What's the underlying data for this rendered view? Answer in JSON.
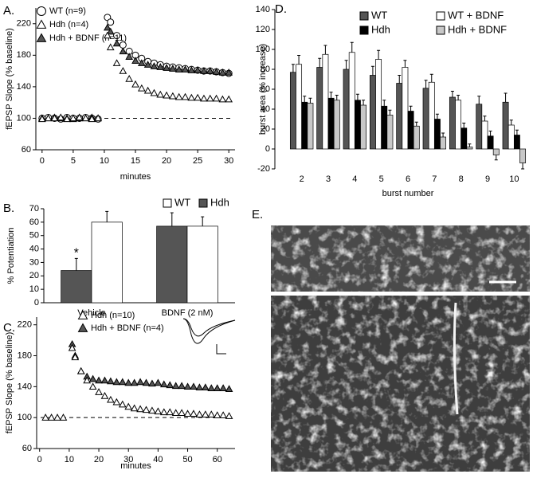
{
  "chart_data": [
    {
      "type": "scatter",
      "panel": "A.",
      "xlabel": "minutes",
      "ylabel": "fEPSP Slope (% baseline)",
      "x": [
        0,
        1,
        2,
        3,
        4,
        5,
        6,
        7,
        8,
        9,
        10.5,
        11,
        12,
        13,
        14,
        15,
        16,
        17,
        18,
        19,
        20,
        21,
        22,
        23,
        24,
        25,
        26,
        27,
        28,
        29,
        30
      ],
      "series": [
        {
          "name": "WT (n=9)",
          "marker": "circle-open",
          "color": "#ffffff",
          "values": [
            100,
            101,
            100,
            99,
            101,
            100,
            100,
            101,
            100,
            99,
            228,
            222,
            205,
            193,
            185,
            180,
            176,
            172,
            170,
            168,
            166,
            165,
            164,
            163,
            162,
            161,
            160,
            160,
            159,
            158,
            157
          ]
        },
        {
          "name": "Hdh + BDNF (n=11)",
          "marker": "triangle-filled",
          "color": "#555555",
          "values": [
            100,
            100,
            101,
            100,
            100,
            99,
            100,
            100,
            101,
            100,
            215,
            210,
            195,
            185,
            178,
            173,
            170,
            168,
            166,
            165,
            164,
            163,
            162,
            162,
            161,
            161,
            160,
            160,
            159,
            158,
            158
          ]
        },
        {
          "name": "Hdh (n=4)",
          "marker": "triangle-open",
          "color": "#ffffff",
          "values": [
            99,
            100,
            100,
            101,
            99,
            100,
            101,
            100,
            99,
            100,
            205,
            190,
            170,
            160,
            150,
            143,
            138,
            135,
            132,
            130,
            129,
            128,
            127,
            127,
            126,
            126,
            125,
            125,
            125,
            124,
            124
          ]
        }
      ],
      "xlim": [
        -1,
        31
      ],
      "xticks": [
        0,
        5,
        10,
        15,
        20,
        25,
        30
      ],
      "ylim": [
        60,
        240
      ],
      "yticks": [
        60,
        100,
        140,
        180,
        220
      ],
      "reference_line": 100
    },
    {
      "type": "bar",
      "panel": "B.",
      "ylabel": "% Potentiation",
      "categories": [
        "Vehicle",
        "BDNF (2 nM)"
      ],
      "series": [
        {
          "name": "Hdh",
          "color": "#555555",
          "values": [
            24,
            57
          ],
          "errors": [
            9,
            10
          ]
        },
        {
          "name": "WT",
          "color": "#ffffff",
          "values": [
            60,
            57
          ],
          "errors": [
            8,
            7
          ]
        }
      ],
      "annotation": "*",
      "ylim": [
        0,
        70
      ],
      "yticks": [
        0,
        10,
        20,
        30,
        40,
        50,
        60,
        70
      ]
    },
    {
      "type": "scatter",
      "panel": "C.",
      "xlabel": "minutes",
      "ylabel": "fEPSP Slope (% baseline)",
      "x": [
        2,
        4,
        6,
        8,
        11,
        12,
        14,
        16,
        18,
        20,
        22,
        24,
        26,
        28,
        30,
        32,
        34,
        36,
        38,
        40,
        42,
        44,
        46,
        48,
        50,
        52,
        54,
        56,
        58,
        60,
        62,
        64
      ],
      "series": [
        {
          "name": "Hdh + BDNF (n=4)",
          "marker": "triangle-filled",
          "color": "#555555",
          "values": [
            null,
            null,
            null,
            null,
            195,
            180,
            160,
            153,
            150,
            148,
            148,
            147,
            146,
            146,
            145,
            145,
            146,
            145,
            144,
            145,
            143,
            142,
            141,
            141,
            140,
            140,
            139,
            139,
            138,
            138,
            138,
            137
          ]
        },
        {
          "name": "Hdh (n=10)",
          "marker": "triangle-open",
          "color": "#ffffff",
          "values": [
            100,
            100,
            100,
            100,
            190,
            178,
            160,
            148,
            140,
            133,
            128,
            123,
            120,
            117,
            114,
            112,
            111,
            110,
            109,
            108,
            107,
            107,
            106,
            106,
            105,
            105,
            104,
            104,
            104,
            103,
            103,
            102
          ]
        }
      ],
      "xlim": [
        -1,
        66
      ],
      "xticks": [
        0,
        10,
        20,
        30,
        40,
        50,
        60
      ],
      "ylim": [
        60,
        230
      ],
      "yticks": [
        60,
        100,
        140,
        180,
        220
      ],
      "reference_line": 100
    },
    {
      "type": "bar",
      "panel": "D.",
      "xlabel": "burst number",
      "ylabel": "burst area (% increase)",
      "categories": [
        "2",
        "3",
        "4",
        "5",
        "6",
        "7",
        "8",
        "9",
        "10"
      ],
      "series": [
        {
          "name": "WT",
          "color": "#555555",
          "values": [
            77,
            82,
            80,
            74,
            66,
            61,
            52,
            45,
            47
          ],
          "errors": [
            8,
            9,
            9,
            9,
            8,
            8,
            6,
            8,
            9
          ]
        },
        {
          "name": "WT + BDNF",
          "color": "#ffffff",
          "values": [
            85,
            95,
            97,
            90,
            82,
            67,
            49,
            28,
            24
          ],
          "errors": [
            9,
            9,
            10,
            9,
            7,
            8,
            5,
            5,
            5
          ]
        },
        {
          "name": "Hdh",
          "color": "#000000",
          "values": [
            47,
            51,
            49,
            43,
            38,
            30,
            21,
            13,
            14
          ],
          "errors": [
            6,
            6,
            6,
            6,
            5,
            5,
            5,
            5,
            5
          ]
        },
        {
          "name": "Hdh + BDNF",
          "color": "#c8c8c8",
          "values": [
            46,
            49,
            44,
            34,
            23,
            12,
            2,
            -6,
            -14
          ],
          "errors": [
            5,
            5,
            5,
            5,
            4,
            4,
            3,
            5,
            6
          ]
        }
      ],
      "ylim": [
        -20,
        140
      ],
      "yticks": [
        -20,
        0,
        20,
        40,
        60,
        80,
        100,
        120,
        140
      ]
    },
    {
      "type": "image",
      "panel": "E."
    }
  ]
}
